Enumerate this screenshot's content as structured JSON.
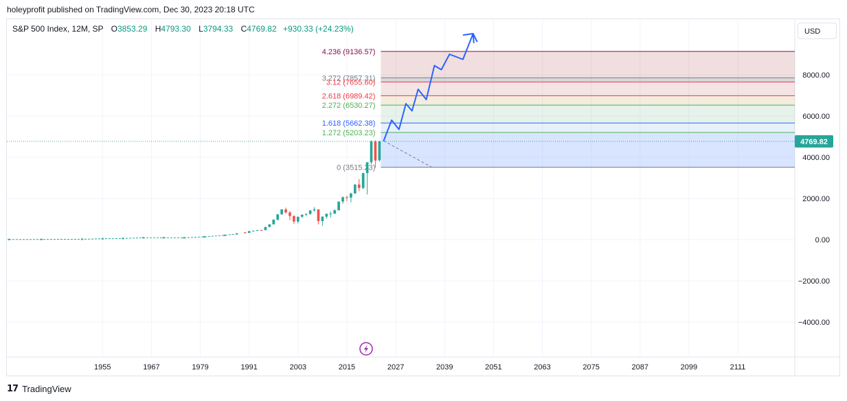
{
  "publisher": "holeyprofit published on TradingView.com, Dec 30, 2023 20:18 UTC",
  "legend": {
    "symbol": "S&P 500 Index, 12M, SP",
    "open_label": "O",
    "open": "3853.29",
    "high_label": "H",
    "high": "4793.30",
    "low_label": "L",
    "low": "3794.33",
    "close_label": "C",
    "close": "4769.82",
    "change": "+930.33 (+24.23%)"
  },
  "currency_button": "USD",
  "footer_brand": "TradingView",
  "colors": {
    "up": "#26a69a",
    "down": "#ef5350",
    "arrow": "#2962ff",
    "price_badge": "#26a69a",
    "grid": "#f0f3fa",
    "axis_text": "#131722"
  },
  "chart_data": {
    "type": "candlestick",
    "title": "S&P 500 Index, 12M, SP",
    "y_axis": {
      "ylim": [
        -5700,
        10700
      ],
      "ticks": [
        "8000.00",
        "6000.00",
        "4000.00",
        "2000.00",
        "0.00",
        "−2000.00",
        "−4000.00"
      ],
      "tick_values": [
        8000,
        6000,
        4000,
        2000,
        0,
        -2000,
        -4000
      ]
    },
    "x_axis": {
      "xlim": [
        1931.5,
        2125
      ],
      "ticks": [
        "1955",
        "1967",
        "1979",
        "1991",
        "2003",
        "2015",
        "2027",
        "2039",
        "2051",
        "2063",
        "2075",
        "2087",
        "2099",
        "2111"
      ]
    },
    "current_price": {
      "value": 4769.82,
      "label": "4769.82"
    },
    "candles": [
      {
        "year": 1990,
        "o": 353,
        "c": 330,
        "h": 369,
        "l": 295
      },
      {
        "year": 1991,
        "o": 330,
        "c": 417,
        "h": 418,
        "l": 312
      },
      {
        "year": 1992,
        "o": 417,
        "c": 436,
        "h": 442,
        "l": 394
      },
      {
        "year": 1993,
        "o": 436,
        "c": 466,
        "h": 471,
        "l": 429
      },
      {
        "year": 1994,
        "o": 466,
        "c": 459,
        "h": 482,
        "l": 438
      },
      {
        "year": 1995,
        "o": 459,
        "c": 616,
        "h": 622,
        "l": 459
      },
      {
        "year": 1996,
        "o": 616,
        "c": 741,
        "h": 757,
        "l": 598
      },
      {
        "year": 1997,
        "o": 741,
        "c": 970,
        "h": 983,
        "l": 737
      },
      {
        "year": 1998,
        "o": 970,
        "c": 1229,
        "h": 1241,
        "l": 923
      },
      {
        "year": 1999,
        "o": 1229,
        "c": 1469,
        "h": 1473,
        "l": 1205
      },
      {
        "year": 2000,
        "o": 1469,
        "c": 1320,
        "h": 1553,
        "l": 1254
      },
      {
        "year": 2001,
        "o": 1320,
        "c": 1148,
        "h": 1383,
        "l": 945
      },
      {
        "year": 2002,
        "o": 1148,
        "c": 880,
        "h": 1176,
        "l": 768
      },
      {
        "year": 2003,
        "o": 880,
        "c": 1112,
        "h": 1112,
        "l": 788
      },
      {
        "year": 2004,
        "o": 1112,
        "c": 1212,
        "h": 1217,
        "l": 1060
      },
      {
        "year": 2005,
        "o": 1212,
        "c": 1248,
        "h": 1275,
        "l": 1137
      },
      {
        "year": 2006,
        "o": 1248,
        "c": 1418,
        "h": 1431,
        "l": 1219
      },
      {
        "year": 2007,
        "o": 1418,
        "c": 1468,
        "h": 1576,
        "l": 1363
      },
      {
        "year": 2008,
        "o": 1468,
        "c": 903,
        "h": 1471,
        "l": 741
      },
      {
        "year": 2009,
        "o": 903,
        "c": 1115,
        "h": 1130,
        "l": 667
      },
      {
        "year": 2010,
        "o": 1115,
        "c": 1258,
        "h": 1262,
        "l": 1011
      },
      {
        "year": 2011,
        "o": 1258,
        "c": 1258,
        "h": 1371,
        "l": 1075
      },
      {
        "year": 2012,
        "o": 1258,
        "c": 1426,
        "h": 1475,
        "l": 1259
      },
      {
        "year": 2013,
        "o": 1426,
        "c": 1848,
        "h": 1849,
        "l": 1426
      },
      {
        "year": 2014,
        "o": 1848,
        "c": 2059,
        "h": 2094,
        "l": 1737
      },
      {
        "year": 2015,
        "o": 2059,
        "c": 2044,
        "h": 2135,
        "l": 1867
      },
      {
        "year": 2016,
        "o": 2044,
        "c": 2239,
        "h": 2278,
        "l": 1810
      },
      {
        "year": 2017,
        "o": 2239,
        "c": 2674,
        "h": 2695,
        "l": 2233
      },
      {
        "year": 2018,
        "o": 2674,
        "c": 2507,
        "h": 2941,
        "l": 2346
      },
      {
        "year": 2019,
        "o": 2507,
        "c": 3231,
        "h": 3248,
        "l": 2444
      },
      {
        "year": 2020,
        "o": 3231,
        "c": 3756,
        "h": 3760,
        "l": 2192
      },
      {
        "year": 2021,
        "o": 3756,
        "c": 4766,
        "h": 4819,
        "l": 3663
      },
      {
        "year": 2022,
        "o": 4766,
        "c": 3840,
        "h": 4819,
        "l": 3492
      },
      {
        "year": 2023,
        "o": 3853,
        "c": 4770,
        "h": 4793,
        "l": 3794
      }
    ],
    "early_series_note": "",
    "early_series": [
      {
        "year": 1932,
        "v": 7
      },
      {
        "year": 1940,
        "v": 11
      },
      {
        "year": 1950,
        "v": 20
      },
      {
        "year": 1955,
        "v": 45
      },
      {
        "year": 1960,
        "v": 58
      },
      {
        "year": 1965,
        "v": 92
      },
      {
        "year": 1970,
        "v": 92
      },
      {
        "year": 1975,
        "v": 90
      },
      {
        "year": 1980,
        "v": 136
      },
      {
        "year": 1985,
        "v": 211
      },
      {
        "year": 1988,
        "v": 278
      }
    ],
    "fibonacci": [
      {
        "label": "4.236 (9136.57)",
        "value": 9136.57,
        "color": "#880e4f"
      },
      {
        "label": "3.272 (7857.31)",
        "value": 7857.31,
        "color": "#787b86"
      },
      {
        "label": "3.12 (7655.60)",
        "value": 7655.6,
        "color": "#f23645"
      },
      {
        "label": "2.618 (6989.42)",
        "value": 6989.42,
        "color": "#f23645"
      },
      {
        "label": "2.272 (6530.27)",
        "value": 6530.27,
        "color": "#4caf50"
      },
      {
        "label": "1.618 (5662.38)",
        "value": 5662.38,
        "color": "#2962ff"
      },
      {
        "label": "1.272 (5203.23)",
        "value": 5203.23,
        "color": "#4caf50"
      },
      {
        "label": "0 (3515.23)",
        "value": 3515.23,
        "color": "#787b86"
      }
    ],
    "fib_x_range": [
      2023,
      2125
    ],
    "projection_path": [
      {
        "year": 2024,
        "v": 4780
      },
      {
        "year": 2026,
        "v": 5800
      },
      {
        "year": 2027.8,
        "v": 5350
      },
      {
        "year": 2029.5,
        "v": 6600
      },
      {
        "year": 2031,
        "v": 6250
      },
      {
        "year": 2032.5,
        "v": 7300
      },
      {
        "year": 2034.5,
        "v": 6800
      },
      {
        "year": 2036.5,
        "v": 8450
      },
      {
        "year": 2038.2,
        "v": 8250
      },
      {
        "year": 2040.2,
        "v": 9000
      },
      {
        "year": 2043.5,
        "v": 8750
      },
      {
        "year": 2046,
        "v": 10000
      },
      {
        "year": 2047,
        "v": 9600
      }
    ],
    "dashed_line": [
      {
        "year": 2024,
        "v": 4800
      },
      {
        "year": 2036,
        "v": 3500
      }
    ]
  }
}
